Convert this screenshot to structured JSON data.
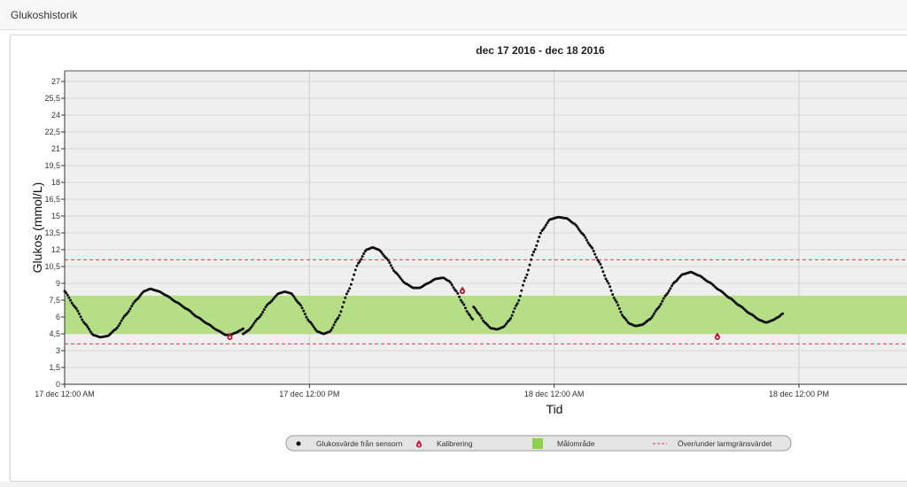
{
  "page": {
    "title": "Glukoshistorik"
  },
  "colors": {
    "plot_background": "#efefef",
    "grid": "#d9d9d9",
    "target_range": "#b5de86",
    "threshold_line": "#e23b3b",
    "sensor_points": "#111111",
    "calibration_marker": "#c8102e"
  },
  "chart_data": {
    "type": "scatter",
    "title": "dec 17 2016 - dec 18 2016",
    "xlabel": "Tid",
    "ylabel": "Glukos (mmol/L)",
    "ylim": [
      0,
      27.75
    ],
    "xlim_hours": [
      0,
      35
    ],
    "yticks": [
      "0",
      "1,5",
      "3",
      "4,5",
      "6",
      "7,5",
      "9",
      "10,5",
      "12",
      "13,5",
      "15",
      "16,5",
      "18",
      "19,5",
      "21",
      "22,5",
      "24",
      "25,5",
      "27"
    ],
    "xticks": [
      {
        "hour": 0,
        "label": "17 dec 12:00 AM"
      },
      {
        "hour": 12,
        "label": "17 dec 12:00 PM"
      },
      {
        "hour": 24,
        "label": "18 dec 12:00 AM"
      },
      {
        "hour": 36,
        "label": "18 dec 12:00 PM"
      }
    ],
    "grid": true,
    "target_range": [
      4.5,
      7.9
    ],
    "alarm_thresholds": [
      3.6,
      11.1
    ],
    "sensor_series": {
      "name": "Glukosvärde från sensorn",
      "segments": [
        [
          [
            0,
            8.3
          ],
          [
            0.5,
            6.9
          ],
          [
            1,
            5.4
          ],
          [
            1.4,
            4.4
          ],
          [
            1.75,
            4.2
          ],
          [
            2.1,
            4.3
          ],
          [
            2.5,
            4.9
          ],
          [
            3,
            6.2
          ],
          [
            3.5,
            7.5
          ],
          [
            3.9,
            8.3
          ],
          [
            4.2,
            8.5
          ],
          [
            4.6,
            8.3
          ],
          [
            5,
            7.9
          ],
          [
            5.5,
            7.3
          ],
          [
            6,
            6.7
          ],
          [
            6.5,
            6.0
          ],
          [
            7,
            5.4
          ],
          [
            7.5,
            4.8
          ],
          [
            7.9,
            4.4
          ],
          [
            8.1,
            4.4
          ],
          [
            8.4,
            4.6
          ],
          [
            8.6,
            4.8
          ],
          [
            8.75,
            4.95
          ]
        ],
        [
          [
            8.75,
            4.5
          ],
          [
            9,
            4.8
          ],
          [
            9.5,
            5.9
          ],
          [
            10,
            7.2
          ],
          [
            10.5,
            8.1
          ],
          [
            10.8,
            8.25
          ],
          [
            11.1,
            8.1
          ],
          [
            11.5,
            7.2
          ],
          [
            12,
            5.6
          ],
          [
            12.4,
            4.7
          ],
          [
            12.7,
            4.5
          ],
          [
            13,
            4.7
          ],
          [
            13.4,
            5.9
          ],
          [
            13.9,
            8.3
          ],
          [
            14.4,
            10.8
          ],
          [
            14.8,
            12.0
          ],
          [
            15.1,
            12.2
          ],
          [
            15.4,
            12.0
          ],
          [
            15.8,
            11.2
          ],
          [
            16.2,
            10.0
          ],
          [
            16.7,
            9.0
          ],
          [
            17.1,
            8.6
          ],
          [
            17.4,
            8.6
          ],
          [
            17.8,
            9.0
          ],
          [
            18.2,
            9.4
          ],
          [
            18.55,
            9.5
          ],
          [
            18.85,
            9.2
          ],
          [
            19.2,
            8.3
          ],
          [
            19.5,
            7.3
          ],
          [
            19.8,
            6.3
          ],
          [
            20,
            5.8
          ]
        ],
        [
          [
            20.05,
            6.9
          ],
          [
            20.3,
            6.3
          ],
          [
            20.6,
            5.5
          ],
          [
            20.9,
            5.0
          ],
          [
            21.2,
            4.9
          ],
          [
            21.5,
            5.1
          ],
          [
            21.8,
            5.7
          ],
          [
            22.2,
            7.2
          ],
          [
            22.6,
            9.5
          ],
          [
            23,
            11.8
          ],
          [
            23.4,
            13.7
          ],
          [
            23.8,
            14.7
          ],
          [
            24.2,
            14.9
          ],
          [
            24.6,
            14.8
          ],
          [
            25,
            14.3
          ],
          [
            25.4,
            13.4
          ],
          [
            25.8,
            12.3
          ],
          [
            26.2,
            10.9
          ],
          [
            26.6,
            9.2
          ],
          [
            27,
            7.5
          ],
          [
            27.4,
            6.0
          ],
          [
            27.7,
            5.4
          ],
          [
            28,
            5.2
          ],
          [
            28.3,
            5.3
          ],
          [
            28.7,
            5.8
          ],
          [
            29.1,
            6.8
          ],
          [
            29.5,
            8.0
          ],
          [
            29.9,
            9.1
          ],
          [
            30.3,
            9.8
          ],
          [
            30.7,
            10.0
          ],
          [
            31.1,
            9.7
          ],
          [
            31.6,
            9.1
          ],
          [
            32.1,
            8.4
          ],
          [
            32.6,
            7.7
          ],
          [
            33.1,
            7.0
          ],
          [
            33.6,
            6.3
          ],
          [
            34.1,
            5.7
          ],
          [
            34.4,
            5.5
          ],
          [
            34.7,
            5.7
          ],
          [
            35,
            6.0
          ],
          [
            35.2,
            6.3
          ]
        ]
      ]
    },
    "calibration_series": {
      "name": "Kalibrering",
      "points": [
        [
          8.1,
          4.3
        ],
        [
          19.5,
          8.4
        ],
        [
          32.0,
          4.3
        ]
      ]
    },
    "legend": {
      "placement": "bottom",
      "items": [
        {
          "label": "Glukosvärde från sensorn",
          "symbol": "dot"
        },
        {
          "label": "Kalibrering",
          "symbol": "drop"
        },
        {
          "label": "Målområde",
          "symbol": "square"
        },
        {
          "label": "Över/under larmgränsvärdet",
          "symbol": "dashed-line"
        }
      ]
    }
  }
}
